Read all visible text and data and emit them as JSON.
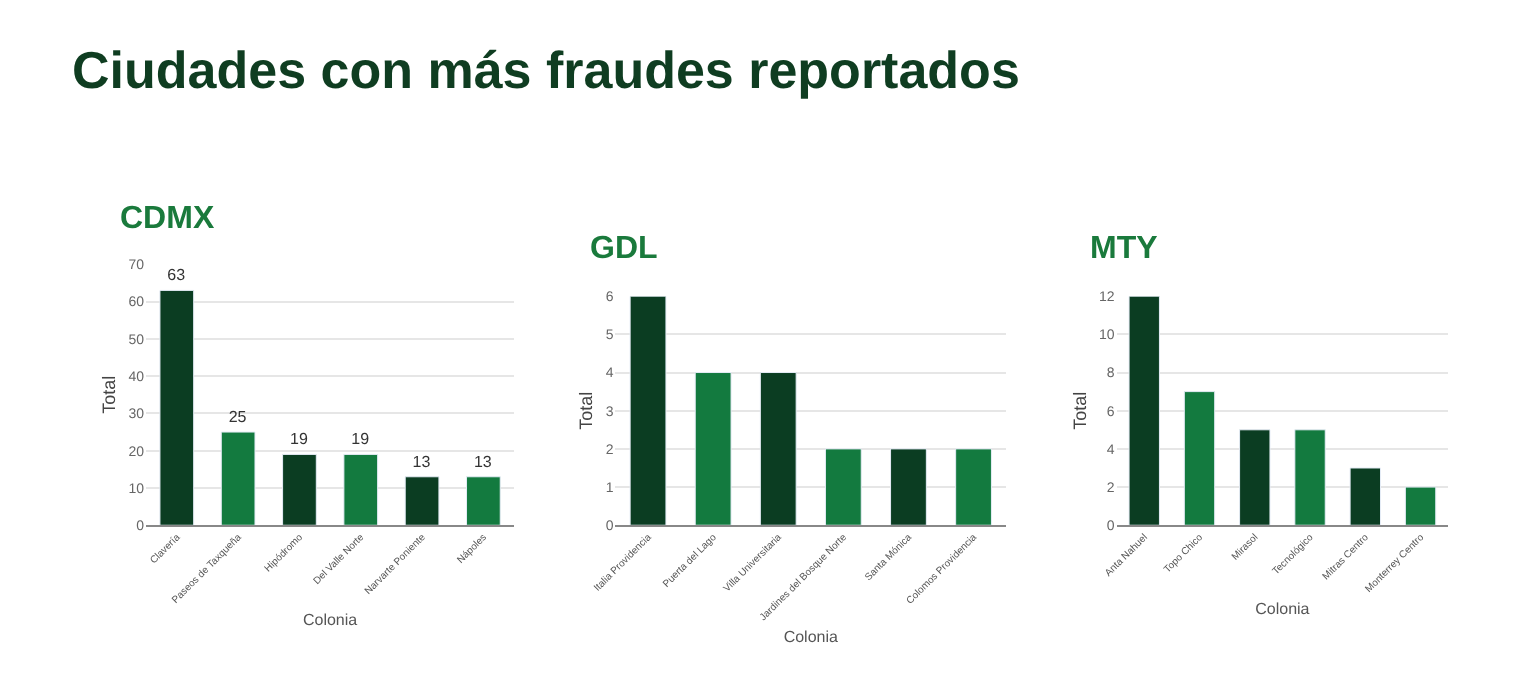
{
  "chart_data": [
    {
      "type": "other",
      "title": "Ciudades con más fraudes reportados"
    },
    {
      "type": "bar",
      "title": "CDMX",
      "xlabel": "Colonia",
      "ylabel": "Total",
      "categories": [
        "Clavería",
        "Paseos de Taxqueña",
        "Hipódromo",
        "Del Valle Norte",
        "Narvarte Poniente",
        "Nápoles"
      ],
      "values": [
        63,
        25,
        19,
        19,
        13,
        13
      ],
      "colors": [
        "#0b3d22",
        "#137a3f",
        "#0b3d22",
        "#137a3f",
        "#0b3d22",
        "#137a3f"
      ],
      "data_labels": true,
      "ylim": [
        0,
        70
      ],
      "yticks": [
        0,
        10,
        20,
        30,
        40,
        50,
        60,
        70
      ],
      "grid": "y"
    },
    {
      "type": "bar",
      "title": "GDL",
      "xlabel": "Colonia",
      "ylabel": "Total",
      "categories": [
        "Italia Providencia",
        "Puerta del Lago",
        "Villa Universitaria",
        "Jardines del Bosque Norte",
        "Santa Mónica",
        "Colomos Providencia"
      ],
      "values": [
        6,
        4,
        4,
        2,
        2,
        2
      ],
      "colors": [
        "#0b3d22",
        "#137a3f",
        "#0b3d22",
        "#137a3f",
        "#0b3d22",
        "#137a3f"
      ],
      "ylim": [
        0,
        6
      ],
      "yticks": [
        0,
        1,
        2,
        3,
        4,
        5,
        6
      ],
      "grid": "y"
    },
    {
      "type": "bar",
      "title": "MTY",
      "xlabel": "Colonia",
      "ylabel": "Total",
      "categories": [
        "Anta Nahuel",
        "Topo Chico",
        "Mirasol",
        "Tecnológico",
        "Mitras Centro",
        "Monterrey Centro"
      ],
      "values": [
        12,
        7,
        5,
        5,
        3,
        2
      ],
      "colors": [
        "#0b3d22",
        "#137a3f",
        "#0b3d22",
        "#137a3f",
        "#0b3d22",
        "#137a3f"
      ],
      "ylim": [
        0,
        12
      ],
      "yticks": [
        0,
        2,
        4,
        6,
        8,
        10,
        12
      ],
      "grid": "y"
    }
  ]
}
